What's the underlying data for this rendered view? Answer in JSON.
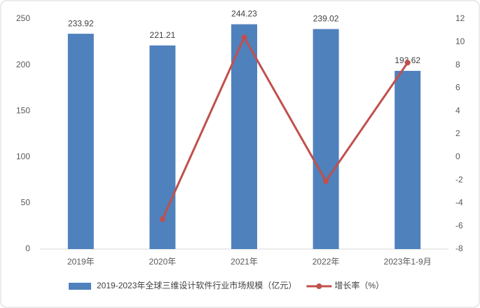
{
  "chart_data": {
    "type": "bar",
    "categories": [
      "2019年",
      "2020年",
      "2021年",
      "2022年",
      "2023年1-9月"
    ],
    "series": [
      {
        "name": "2019-2023年全球三维设计软件行业市场规模（亿元）",
        "type": "bar",
        "color": "#4f81bd",
        "values": [
          233.92,
          221.21,
          244.23,
          239.02,
          193.62
        ]
      },
      {
        "name": "增长率（%）",
        "type": "line",
        "color": "#c0504d",
        "axis": "y2",
        "values": [
          null,
          -5.4,
          10.4,
          -2.1,
          8.2
        ]
      }
    ],
    "ylim": [
      0,
      250
    ],
    "yticks": [
      0,
      50,
      100,
      150,
      200,
      250
    ],
    "y2lim": [
      -8,
      12
    ],
    "y2ticks": [
      -8,
      -6,
      -4,
      -2,
      0,
      2,
      4,
      6,
      8,
      10,
      12
    ],
    "grid": false
  }
}
